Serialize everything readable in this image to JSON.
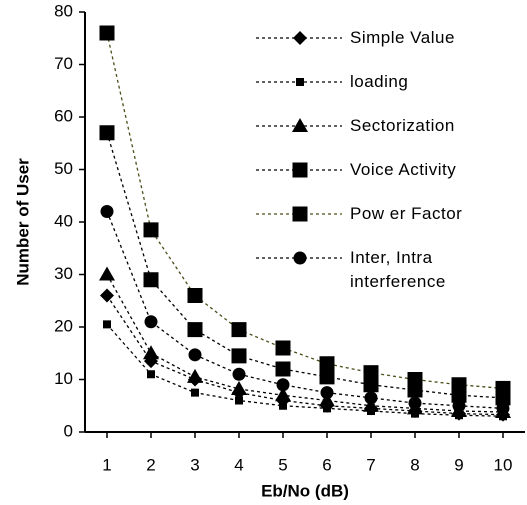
{
  "chart_data": {
    "type": "line",
    "x_label": "Eb/No (dB)",
    "y_label": "Number of User",
    "x": [
      1,
      2,
      3,
      4,
      5,
      6,
      7,
      8,
      9,
      10
    ],
    "xlim": [
      0.5,
      10.5
    ],
    "xticks": [
      1,
      2,
      3,
      4,
      5,
      6,
      7,
      8,
      9,
      10
    ],
    "ylim": [
      0,
      80
    ],
    "yticks": [
      0,
      10,
      20,
      30,
      40,
      50,
      60,
      70,
      80
    ],
    "series": [
      {
        "name": "Simple Value",
        "color": "#000000",
        "marker": "diamond",
        "values": [
          26,
          13.5,
          10,
          7.5,
          6,
          5,
          4.5,
          4,
          3.5,
          3.3
        ]
      },
      {
        "name": "loading",
        "color": "#000000",
        "marker": "small-square",
        "values": [
          20.5,
          11,
          7.5,
          6,
          5,
          4.5,
          4,
          3.5,
          3.2,
          3
        ]
      },
      {
        "name": "Sectorization",
        "color": "#000000",
        "marker": "triangle",
        "values": [
          30,
          15,
          10.5,
          8.2,
          7,
          6,
          5,
          4.5,
          4,
          3.8
        ]
      },
      {
        "name": "Voice Activity",
        "color": "#000000",
        "marker": "square",
        "values": [
          57,
          29,
          19.5,
          14.5,
          12,
          10.5,
          9,
          8,
          7,
          6.5
        ]
      },
      {
        "name": "Pow er Factor",
        "color": "#4d4d1a",
        "marker": "square",
        "values": [
          76,
          38.5,
          26,
          19.5,
          16,
          13,
          11.3,
          10,
          9,
          8.3
        ]
      },
      {
        "name": "Inter, Intra interference",
        "color": "#000000",
        "marker": "circle",
        "values": [
          42,
          21,
          14.7,
          11,
          9,
          7.5,
          6.5,
          5.5,
          5,
          4.5
        ]
      }
    ]
  }
}
